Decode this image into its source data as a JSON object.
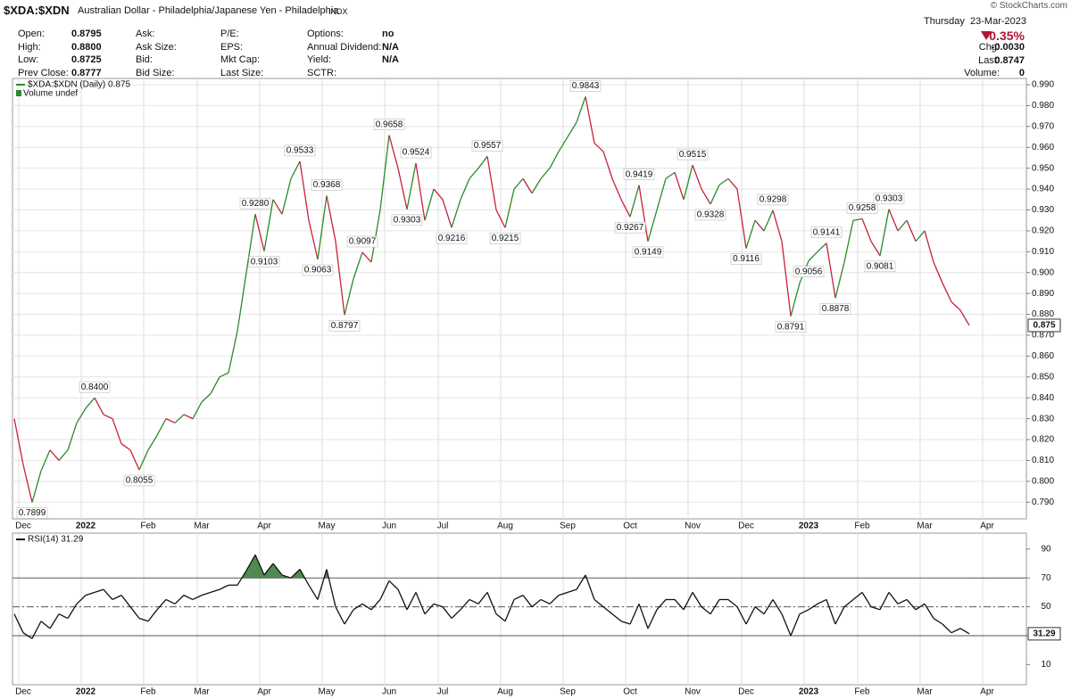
{
  "header": {
    "symbol": "$XDA:$XDN",
    "description": "Australian Dollar - Philadelphia/Japanese Yen - Philadelphia",
    "exchange": "INDX",
    "brand": "© StockCharts.com",
    "date": "Thursday  23-Mar-2023",
    "change_pct": "-0.35%"
  },
  "quote": {
    "rows": [
      [
        {
          "label": "Open:",
          "value": "0.8795"
        },
        {
          "label": "Ask:"
        },
        {
          "label": "P/E:"
        },
        {
          "label": "Options:",
          "value": "no"
        }
      ],
      [
        {
          "label": "High:",
          "value": "0.8800"
        },
        {
          "label": "Ask Size:"
        },
        {
          "label": "EPS:"
        },
        {
          "label": "Annual Dividend:",
          "value": "N/A"
        }
      ],
      [
        {
          "label": "Low:",
          "value": "0.8725"
        },
        {
          "label": "Bid:"
        },
        {
          "label": "Mkt Cap:"
        },
        {
          "label": "Yield:",
          "value": "N/A"
        }
      ],
      [
        {
          "label": "Prev Close:",
          "value": "0.8777"
        },
        {
          "label": "Bid Size:"
        },
        {
          "label": "Last Size:"
        },
        {
          "label": "SCTR:"
        }
      ]
    ],
    "right": [
      {
        "label": "Chg:",
        "value": "-0.0030"
      },
      {
        "label": "Last:",
        "value": "0.8747"
      },
      {
        "label": "Volume:",
        "value": "0"
      }
    ]
  },
  "chart_data": [
    {
      "type": "line",
      "legend_extra": "Volume undef",
      "categories": [
        null,
        "Dec",
        null,
        null,
        null,
        null,
        null,
        null,
        "2022",
        null,
        null,
        null,
        null,
        null,
        null,
        "Feb",
        null,
        null,
        null,
        null,
        null,
        "Mar",
        null,
        null,
        null,
        null,
        null,
        null,
        "Apr",
        null,
        null,
        null,
        null,
        null,
        null,
        "May",
        null,
        null,
        null,
        null,
        null,
        null,
        "Jun",
        null,
        null,
        null,
        null,
        null,
        "Jul",
        null,
        null,
        null,
        null,
        null,
        null,
        "Aug",
        null,
        null,
        null,
        null,
        null,
        null,
        "Sep",
        null,
        null,
        null,
        null,
        null,
        null,
        "Oct",
        null,
        null,
        null,
        null,
        null,
        null,
        "Nov",
        null,
        null,
        null,
        null,
        null,
        "Dec",
        null,
        null,
        null,
        null,
        null,
        null,
        "2023",
        null,
        null,
        null,
        null,
        null,
        "Feb",
        null,
        null,
        null,
        null,
        null,
        null,
        "Mar",
        null,
        null,
        null,
        null,
        null,
        null,
        "Apr",
        null
      ],
      "series": [
        {
          "name": "$XDA:$XDN (Daily) 0.875",
          "up_color": "#2a8a2a",
          "down_color": "#c8203c",
          "values": [
            0.83,
            0.808,
            0.7899,
            0.805,
            0.815,
            0.81,
            0.815,
            0.828,
            0.835,
            0.84,
            0.832,
            0.83,
            0.818,
            0.815,
            0.8055,
            0.815,
            0.822,
            0.83,
            0.828,
            0.832,
            0.83,
            0.838,
            0.842,
            0.85,
            0.852,
            0.872,
            0.9,
            0.928,
            0.9103,
            0.935,
            0.928,
            0.945,
            0.9533,
            0.925,
            0.9063,
            0.9368,
            0.915,
            0.8797,
            0.897,
            0.9097,
            0.905,
            0.93,
            0.9658,
            0.95,
            0.9303,
            0.9524,
            0.925,
            0.94,
            0.935,
            0.9216,
            0.935,
            0.945,
            0.95,
            0.9557,
            0.93,
            0.9215,
            0.94,
            0.945,
            0.938,
            0.945,
            0.95,
            0.958,
            0.965,
            0.972,
            0.9843,
            0.962,
            0.958,
            0.945,
            0.935,
            0.9267,
            0.9419,
            0.9149,
            0.93,
            0.945,
            0.948,
            0.935,
            0.9515,
            0.94,
            0.9328,
            0.942,
            0.945,
            0.94,
            0.9116,
            0.925,
            0.92,
            0.9298,
            0.915,
            0.8791,
            0.895,
            0.9056,
            0.91,
            0.9141,
            0.8878,
            0.905,
            0.925,
            0.9258,
            0.915,
            0.9081,
            0.9303,
            0.92,
            0.925,
            0.915,
            0.92,
            0.905,
            0.895,
            0.886,
            0.882,
            0.8747,
            null,
            null,
            null
          ],
          "value_labels": [
            null,
            null,
            "0.7899",
            null,
            null,
            null,
            null,
            null,
            null,
            "0.8400",
            null,
            null,
            null,
            null,
            "0.8055",
            null,
            null,
            null,
            null,
            null,
            null,
            null,
            null,
            null,
            null,
            null,
            null,
            "0.9280",
            "0.9103",
            null,
            null,
            null,
            "0.9533",
            null,
            "0.9063",
            "0.9368",
            null,
            "0.8797",
            null,
            "0.9097",
            null,
            null,
            "0.9658",
            null,
            "0.9303",
            "0.9524",
            null,
            null,
            null,
            "0.9216",
            null,
            null,
            null,
            "0.9557",
            null,
            "0.9215",
            null,
            null,
            null,
            null,
            null,
            null,
            null,
            null,
            "0.9843",
            null,
            null,
            null,
            null,
            "0.9267",
            "0.9419",
            "0.9149",
            null,
            null,
            null,
            null,
            "0.9515",
            null,
            "0.9328",
            null,
            null,
            null,
            "0.9116",
            null,
            null,
            "0.9298",
            null,
            "0.8791",
            null,
            "0.9056",
            null,
            "0.9141",
            "0.8878",
            null,
            null,
            "0.9258",
            null,
            "0.9081",
            "0.9303",
            null,
            null,
            null,
            null,
            null,
            null,
            null,
            null,
            null,
            null,
            null,
            null
          ]
        }
      ],
      "ylim": [
        0.782,
        0.993
      ],
      "yticks": [
        {
          "value": 0.79,
          "label": "0.790"
        },
        {
          "value": 0.8,
          "label": "0.800"
        },
        {
          "value": 0.81,
          "label": "0.810"
        },
        {
          "value": 0.82,
          "label": "0.820"
        },
        {
          "value": 0.83,
          "label": "0.830"
        },
        {
          "value": 0.84,
          "label": "0.840"
        },
        {
          "value": 0.85,
          "label": "0.850"
        },
        {
          "value": 0.86,
          "label": "0.860"
        },
        {
          "value": 0.87,
          "label": "0.870"
        },
        {
          "value": 0.88,
          "label": "0.880"
        },
        {
          "value": 0.89,
          "label": "0.890"
        },
        {
          "value": 0.9,
          "label": "0.900"
        },
        {
          "value": 0.91,
          "label": "0.910"
        },
        {
          "value": 0.92,
          "label": "0.920"
        },
        {
          "value": 0.93,
          "label": "0.930"
        },
        {
          "value": 0.94,
          "label": "0.940"
        },
        {
          "value": 0.95,
          "label": "0.950"
        },
        {
          "value": 0.96,
          "label": "0.960"
        },
        {
          "value": 0.97,
          "label": "0.970"
        },
        {
          "value": 0.98,
          "label": "0.980"
        },
        {
          "value": 0.99,
          "label": "0.990"
        }
      ],
      "grid": true,
      "last_marker": {
        "value": 0.8747,
        "label": "0.875"
      }
    },
    {
      "type": "line",
      "categories": [
        null,
        "Dec",
        null,
        null,
        null,
        null,
        null,
        null,
        "2022",
        null,
        null,
        null,
        null,
        null,
        null,
        "Feb",
        null,
        null,
        null,
        null,
        null,
        "Mar",
        null,
        null,
        null,
        null,
        null,
        null,
        "Apr",
        null,
        null,
        null,
        null,
        null,
        null,
        "May",
        null,
        null,
        null,
        null,
        null,
        null,
        "Jun",
        null,
        null,
        null,
        null,
        null,
        "Jul",
        null,
        null,
        null,
        null,
        null,
        null,
        "Aug",
        null,
        null,
        null,
        null,
        null,
        null,
        "Sep",
        null,
        null,
        null,
        null,
        null,
        null,
        "Oct",
        null,
        null,
        null,
        null,
        null,
        null,
        "Nov",
        null,
        null,
        null,
        null,
        null,
        "Dec",
        null,
        null,
        null,
        null,
        null,
        null,
        "2023",
        null,
        null,
        null,
        null,
        null,
        "Feb",
        null,
        null,
        null,
        null,
        null,
        null,
        "Mar",
        null,
        null,
        null,
        null,
        null,
        null,
        "Apr",
        null
      ],
      "series": [
        {
          "name": "RSI(14) 31.29",
          "color": "#111111",
          "values": [
            45,
            32,
            28,
            40,
            35,
            45,
            42,
            52,
            58,
            60,
            62,
            55,
            58,
            50,
            42,
            40,
            48,
            55,
            52,
            58,
            55,
            58,
            60,
            62,
            65,
            65,
            75,
            86,
            72,
            80,
            72,
            70,
            76,
            65,
            55,
            76,
            50,
            38,
            48,
            52,
            48,
            55,
            68,
            62,
            48,
            60,
            45,
            52,
            50,
            42,
            48,
            55,
            52,
            60,
            45,
            40,
            55,
            58,
            50,
            55,
            52,
            58,
            60,
            62,
            72,
            55,
            50,
            45,
            40,
            38,
            52,
            35,
            48,
            55,
            55,
            48,
            60,
            50,
            45,
            55,
            55,
            50,
            38,
            50,
            45,
            55,
            45,
            30,
            45,
            48,
            52,
            55,
            38,
            50,
            55,
            60,
            50,
            48,
            60,
            52,
            55,
            48,
            52,
            42,
            38,
            32,
            35,
            31.29,
            null,
            null,
            null
          ]
        }
      ],
      "ylim": [
        -4,
        101
      ],
      "yticks": [
        10,
        30,
        50,
        70,
        90
      ],
      "reference_lines": [
        70,
        50,
        30
      ],
      "fill_above": 70,
      "fill_color": "#4f8a4f",
      "last_marker": {
        "value": 31.29,
        "label": "31.29"
      }
    }
  ]
}
